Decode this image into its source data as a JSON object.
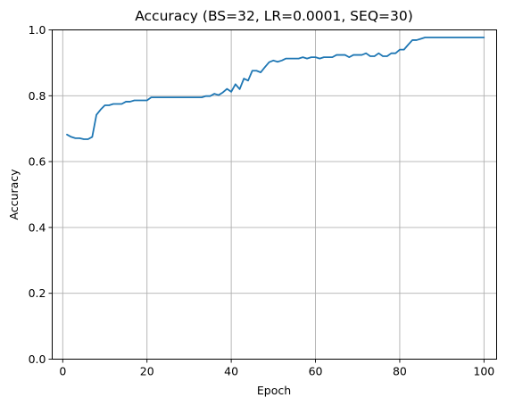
{
  "chart_data": {
    "type": "line",
    "title": "Accuracy (BS=32, LR=0.0001, SEQ=30)",
    "xlabel": "Epoch",
    "ylabel": "Accuracy",
    "xlim": [
      -2.5,
      103
    ],
    "ylim": [
      0.0,
      1.0
    ],
    "xticks": [
      0,
      20,
      40,
      60,
      80,
      100
    ],
    "yticks": [
      0.0,
      0.2,
      0.4,
      0.6,
      0.8,
      1.0
    ],
    "xtick_labels": [
      "0",
      "20",
      "40",
      "60",
      "80",
      "100"
    ],
    "ytick_labels": [
      "0.0",
      "0.2",
      "0.4",
      "0.6",
      "0.8",
      "1.0"
    ],
    "grid": true,
    "series": [
      {
        "color": "#1f77b4",
        "x": [
          1,
          2,
          3,
          4,
          5,
          6,
          7,
          8,
          9,
          10,
          11,
          12,
          13,
          14,
          15,
          16,
          17,
          18,
          19,
          20,
          21,
          22,
          23,
          24,
          25,
          26,
          27,
          28,
          29,
          30,
          31,
          32,
          33,
          34,
          35,
          36,
          37,
          38,
          39,
          40,
          41,
          42,
          43,
          44,
          45,
          46,
          47,
          48,
          49,
          50,
          51,
          52,
          53,
          54,
          55,
          56,
          57,
          58,
          59,
          60,
          61,
          62,
          63,
          64,
          65,
          66,
          67,
          68,
          69,
          70,
          71,
          72,
          73,
          74,
          75,
          76,
          77,
          78,
          79,
          80,
          81,
          82,
          83,
          84,
          85,
          86,
          87,
          88,
          89,
          90,
          91,
          92,
          93,
          94,
          95,
          96,
          97,
          98,
          99,
          100
        ],
        "values": [
          0.682,
          0.675,
          0.671,
          0.671,
          0.668,
          0.668,
          0.675,
          0.742,
          0.758,
          0.771,
          0.771,
          0.775,
          0.775,
          0.775,
          0.782,
          0.782,
          0.786,
          0.786,
          0.786,
          0.786,
          0.795,
          0.795,
          0.795,
          0.795,
          0.795,
          0.795,
          0.795,
          0.795,
          0.795,
          0.795,
          0.795,
          0.795,
          0.795,
          0.799,
          0.799,
          0.806,
          0.802,
          0.81,
          0.821,
          0.812,
          0.835,
          0.82,
          0.852,
          0.846,
          0.876,
          0.876,
          0.871,
          0.887,
          0.902,
          0.907,
          0.903,
          0.907,
          0.913,
          0.913,
          0.913,
          0.913,
          0.917,
          0.913,
          0.917,
          0.917,
          0.913,
          0.917,
          0.917,
          0.917,
          0.924,
          0.924,
          0.924,
          0.917,
          0.924,
          0.924,
          0.924,
          0.929,
          0.92,
          0.92,
          0.929,
          0.92,
          0.92,
          0.929,
          0.929,
          0.94,
          0.94,
          0.955,
          0.969,
          0.969,
          0.973,
          0.977,
          0.977,
          0.977,
          0.977,
          0.977,
          0.977,
          0.977,
          0.977,
          0.977,
          0.977,
          0.977,
          0.977,
          0.977,
          0.977,
          0.977
        ]
      }
    ]
  }
}
